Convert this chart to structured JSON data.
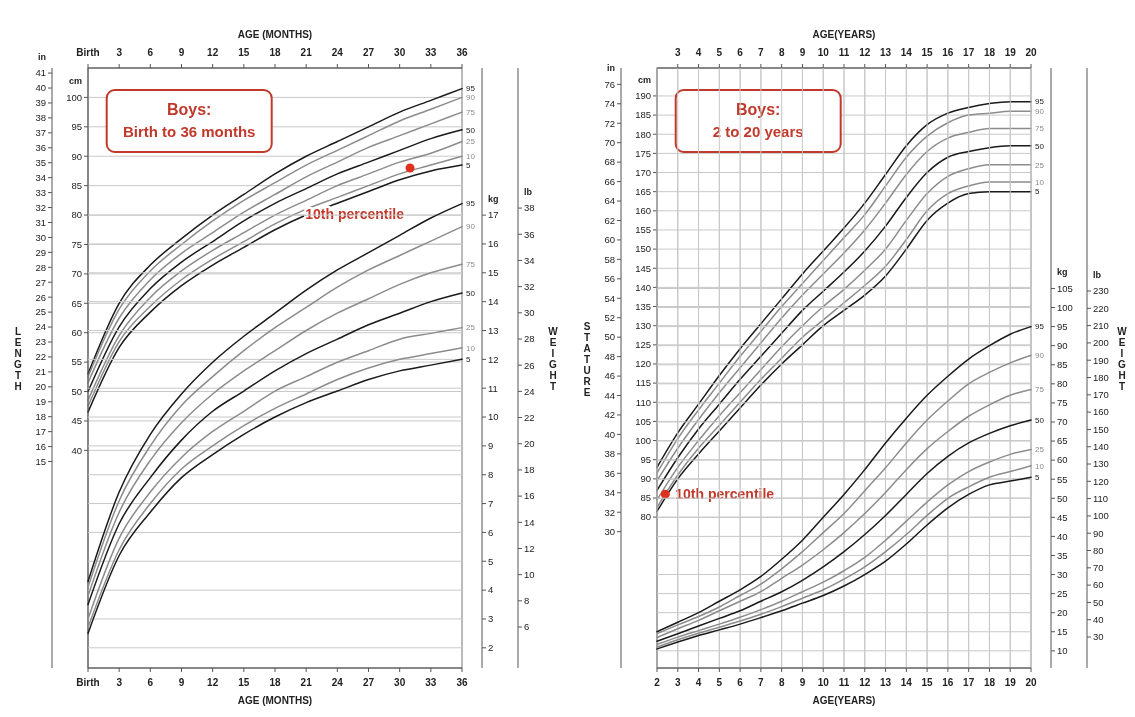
{
  "chart_data": [
    {
      "type": "line",
      "title": "Boys:",
      "subtitle": "Birth to 36 months",
      "xlabel": "AGE (MONTHS)",
      "ylabel": "cm",
      "y3label": "in",
      "annotations": [
        "LENGTH",
        {
          "text": "10th percentile",
          "x": 31,
          "y": 88
        }
      ],
      "x": [
        0,
        3,
        6,
        9,
        12,
        15,
        18,
        21,
        24,
        27,
        30,
        33,
        36
      ],
      "xlim": [
        0,
        36
      ],
      "xticks": [
        {
          "value": 0,
          "label": "Birth"
        },
        3,
        6,
        9,
        12,
        15,
        18,
        21,
        24,
        27,
        30,
        33,
        36
      ],
      "ylim": [
        3,
        105
      ],
      "yticks": [
        40,
        45,
        50,
        55,
        60,
        65,
        70,
        75,
        80,
        85,
        90,
        95,
        100
      ],
      "y3lim": [
        1.18,
        41.34
      ],
      "y3ticks": [
        15,
        16,
        17,
        18,
        19,
        20,
        21,
        22,
        23,
        24,
        25,
        26,
        27,
        28,
        29,
        30,
        31,
        32,
        33,
        34,
        35,
        36,
        37,
        38,
        39,
        40,
        41
      ],
      "grid": "y",
      "series": [
        {
          "name": "95",
          "color": "#1a1a1a",
          "values": [
            53,
            65,
            71.5,
            76,
            80,
            83.5,
            87,
            90,
            92.5,
            95,
            97.5,
            99.5,
            101.5
          ]
        },
        {
          "name": "90",
          "color": "#8c8c8c",
          "values": [
            52.5,
            64,
            70.5,
            75,
            79,
            82.5,
            85.5,
            88.5,
            91,
            93.5,
            96,
            98,
            100
          ]
        },
        {
          "name": "75",
          "color": "#8c8c8c",
          "values": [
            51.5,
            62.5,
            69,
            73.5,
            77,
            80.5,
            83.5,
            86.5,
            89,
            91.5,
            93.5,
            95.5,
            97.5
          ]
        },
        {
          "name": "50",
          "color": "#1a1a1a",
          "values": [
            50,
            61,
            67.5,
            72,
            75.5,
            79,
            82,
            84.5,
            87,
            89,
            91,
            93,
            94.5
          ]
        },
        {
          "name": "25",
          "color": "#8c8c8c",
          "values": [
            48.5,
            59.5,
            66,
            70.5,
            74,
            77,
            80,
            82.5,
            85,
            87,
            89,
            90.5,
            92.5
          ]
        },
        {
          "name": "10",
          "color": "#8c8c8c",
          "values": [
            47.5,
            58.5,
            64.5,
            69,
            72.5,
            75.5,
            78.5,
            81,
            83,
            85,
            87,
            88.5,
            90
          ]
        },
        {
          "name": "5",
          "color": "#1a1a1a",
          "values": [
            46.5,
            57.5,
            63.5,
            68,
            71.5,
            74.5,
            77.5,
            80,
            82,
            84,
            86,
            87.5,
            88.5
          ]
        },
        {
          "type": "scatter",
          "color": "#e0301e",
          "x": [
            31
          ],
          "values": [
            88
          ]
        }
      ]
    },
    {
      "type": "line",
      "xlabel": "AGE (MONTHS)",
      "ylabel": "kg",
      "y3label": "lb",
      "annotations": [
        "WEIGHT"
      ],
      "x": [
        0,
        3,
        6,
        9,
        12,
        15,
        18,
        21,
        24,
        27,
        30,
        33,
        36
      ],
      "xlim": [
        0,
        36
      ],
      "xticks": [
        {
          "value": 0,
          "label": "Birth"
        },
        3,
        6,
        9,
        12,
        15,
        18,
        21,
        24,
        27,
        30,
        33,
        36
      ],
      "ylim": [
        1.3,
        22.1
      ],
      "yticks": [
        2,
        3,
        4,
        5,
        6,
        7,
        8,
        9,
        10,
        11,
        12,
        13,
        14,
        15,
        16,
        17
      ],
      "y3lim": [
        2.87,
        48.7
      ],
      "y3ticks": [
        6,
        8,
        10,
        12,
        14,
        16,
        18,
        20,
        22,
        24,
        26,
        28,
        30,
        32,
        34,
        36,
        38
      ],
      "grid": "y",
      "series": [
        {
          "name": "95",
          "color": "#1a1a1a",
          "values": [
            4.3,
            7.4,
            9.4,
            10.8,
            11.9,
            12.8,
            13.6,
            14.4,
            15.1,
            15.7,
            16.3,
            16.9,
            17.4
          ]
        },
        {
          "name": "90",
          "color": "#8c8c8c",
          "values": [
            4.1,
            7.1,
            9.0,
            10.4,
            11.4,
            12.3,
            13.1,
            13.8,
            14.5,
            15.1,
            15.6,
            16.1,
            16.6
          ]
        },
        {
          "name": "75",
          "color": "#8c8c8c",
          "values": [
            3.8,
            6.7,
            8.5,
            9.8,
            10.8,
            11.6,
            12.3,
            13.0,
            13.6,
            14.1,
            14.6,
            15.0,
            15.3
          ]
        },
        {
          "name": "50",
          "color": "#1a1a1a",
          "values": [
            3.5,
            6.3,
            7.9,
            9.2,
            10.2,
            10.9,
            11.6,
            12.2,
            12.7,
            13.2,
            13.6,
            14.0,
            14.3
          ]
        },
        {
          "name": "25",
          "color": "#8c8c8c",
          "values": [
            3.0,
            5.8,
            7.4,
            8.6,
            9.5,
            10.2,
            10.9,
            11.4,
            11.9,
            12.3,
            12.7,
            12.9,
            13.1
          ]
        },
        {
          "name": "10",
          "color": "#8c8c8c",
          "values": [
            2.7,
            5.4,
            7.0,
            8.2,
            9.0,
            9.7,
            10.3,
            10.8,
            11.3,
            11.7,
            12.0,
            12.2,
            12.4
          ]
        },
        {
          "name": "5",
          "color": "#1a1a1a",
          "values": [
            2.5,
            5.2,
            6.7,
            7.9,
            8.7,
            9.4,
            10.0,
            10.5,
            10.9,
            11.3,
            11.6,
            11.8,
            12.0
          ]
        }
      ]
    },
    {
      "type": "line",
      "title": "Boys:",
      "subtitle": "2 to 20 years",
      "xlabel": "AGE(YEARS)",
      "ylabel": "cm",
      "y3label": "in",
      "annotations": [
        "STATURE",
        {
          "text": "10th percentile",
          "x": 2.4,
          "y": 86
        }
      ],
      "x": [
        2,
        3,
        4,
        5,
        6,
        7,
        8,
        9,
        10,
        11,
        12,
        13,
        14,
        15,
        16,
        17,
        18,
        19,
        20
      ],
      "xlim": [
        2,
        20
      ],
      "xticks": [
        3,
        4,
        5,
        6,
        7,
        8,
        9,
        10,
        11,
        12,
        13,
        14,
        15,
        16,
        17,
        18,
        19,
        20
      ],
      "ylim": [
        40.6,
        197.3
      ],
      "yticks": [
        80,
        85,
        90,
        95,
        100,
        105,
        110,
        115,
        120,
        125,
        130,
        135,
        140,
        145,
        150,
        155,
        160,
        165,
        170,
        175,
        180,
        185,
        190
      ],
      "y3lim": [
        15.98,
        77.68
      ],
      "y3ticks": [
        30,
        32,
        34,
        36,
        38,
        40,
        42,
        44,
        46,
        48,
        50,
        52,
        54,
        56,
        58,
        60,
        62,
        64,
        66,
        68,
        70,
        72,
        74,
        76
      ],
      "grid": true,
      "series": [
        {
          "name": "95",
          "color": "#1a1a1a",
          "values": [
            93,
            102,
            109.5,
            117,
            124,
            130.5,
            137,
            143.5,
            149.5,
            155.5,
            162,
            169.5,
            177,
            182.5,
            185.5,
            187,
            188,
            188.5,
            188.5
          ]
        },
        {
          "name": "90",
          "color": "#8c8c8c",
          "values": [
            91.5,
            100.5,
            108,
            115,
            122,
            128.5,
            135,
            141,
            147,
            153,
            159,
            166.5,
            174,
            179.5,
            183,
            185,
            185.5,
            186,
            186
          ]
        },
        {
          "name": "75",
          "color": "#8c8c8c",
          "values": [
            89.5,
            98,
            105.5,
            112.5,
            119,
            125.5,
            132,
            138,
            143.5,
            149,
            155,
            162,
            169.5,
            175.5,
            179,
            180.5,
            181.5,
            181.5,
            181.5
          ]
        },
        {
          "name": "50",
          "color": "#1a1a1a",
          "values": [
            87,
            95.5,
            103,
            109.5,
            116,
            122,
            128,
            134,
            139,
            144,
            149.5,
            156,
            163.5,
            170,
            174,
            175.5,
            176.5,
            177,
            177
          ]
        },
        {
          "name": "25",
          "color": "#8c8c8c",
          "values": [
            84.5,
            93,
            100,
            106.5,
            112.5,
            118.5,
            124.5,
            130,
            135,
            139.5,
            144.5,
            150,
            157.5,
            164.5,
            169,
            171,
            172,
            172,
            172
          ]
        },
        {
          "name": "10",
          "color": "#8c8c8c",
          "values": [
            82.5,
            91,
            98,
            104,
            110,
            116,
            121.5,
            127,
            131.5,
            136,
            140.5,
            145.5,
            152.5,
            160,
            164.5,
            166.5,
            167.5,
            167.5,
            167.5
          ]
        },
        {
          "name": "5",
          "color": "#1a1a1a",
          "values": [
            81.5,
            90,
            96.5,
            102.5,
            108.5,
            114.5,
            120,
            125,
            130,
            134,
            138,
            143,
            150,
            157.5,
            162,
            164.5,
            165,
            165,
            165
          ]
        },
        {
          "type": "scatter",
          "color": "#e0301e",
          "x": [
            2.4
          ],
          "values": [
            86
          ]
        }
      ]
    },
    {
      "type": "line",
      "xlabel": "AGE(YEARS)",
      "ylabel": "kg",
      "y3label": "lb",
      "annotations": [
        "WEIGHT"
      ],
      "x": [
        2,
        3,
        4,
        5,
        6,
        7,
        8,
        9,
        10,
        11,
        12,
        13,
        14,
        15,
        16,
        17,
        18,
        19,
        20
      ],
      "xlim": [
        2,
        20
      ],
      "xticks": [
        2,
        3,
        4,
        5,
        6,
        7,
        8,
        9,
        10,
        11,
        12,
        13,
        14,
        15,
        16,
        17,
        18,
        19,
        20
      ],
      "ylim": [
        5.5,
        162.8
      ],
      "yticks": [
        10,
        15,
        20,
        25,
        30,
        35,
        40,
        45,
        50,
        55,
        60,
        65,
        70,
        75,
        80,
        85,
        90,
        95,
        100,
        105
      ],
      "y3lim": [
        12.1,
        358.9
      ],
      "y3ticks": [
        30,
        40,
        50,
        60,
        70,
        80,
        90,
        100,
        110,
        120,
        130,
        140,
        150,
        160,
        170,
        180,
        190,
        200,
        210,
        220,
        230
      ],
      "grid": true,
      "series": [
        {
          "name": "95",
          "color": "#1a1a1a",
          "values": [
            15,
            17.5,
            20,
            23,
            26,
            29.5,
            34,
            39,
            45,
            51,
            57.5,
            64.5,
            71,
            77,
            82,
            86.5,
            90,
            93,
            95
          ]
        },
        {
          "name": "90",
          "color": "#8c8c8c",
          "values": [
            14.5,
            16.8,
            19,
            21.5,
            24.5,
            27.5,
            31.5,
            36,
            41,
            46,
            52,
            58,
            64.5,
            70.5,
            75.5,
            80,
            83,
            85.5,
            87.5
          ]
        },
        {
          "name": "75",
          "color": "#8c8c8c",
          "values": [
            13.5,
            15.8,
            18,
            20.5,
            23,
            25.5,
            29,
            32.5,
            36.5,
            41,
            46,
            51.5,
            57.5,
            63,
            67.5,
            71.5,
            74.5,
            77,
            78.5
          ]
        },
        {
          "name": "50",
          "color": "#1a1a1a",
          "values": [
            12.5,
            14.5,
            16.5,
            18.5,
            20.5,
            23,
            25.5,
            28.5,
            32,
            36,
            40.5,
            45.5,
            51,
            56.5,
            61,
            64.5,
            67,
            69,
            70.5
          ]
        },
        {
          "name": "25",
          "color": "#8c8c8c",
          "values": [
            11.7,
            13.6,
            15.3,
            17,
            18.8,
            20.8,
            23,
            25.5,
            28,
            31,
            34.5,
            39,
            44,
            49,
            53.5,
            57,
            59.5,
            61.5,
            62.8
          ]
        },
        {
          "name": "10",
          "color": "#8c8c8c",
          "values": [
            11,
            12.9,
            14.6,
            16.2,
            17.8,
            19.6,
            21.6,
            23.8,
            26,
            28.8,
            32,
            36,
            40.5,
            45.5,
            50,
            53,
            55.5,
            57,
            58.5
          ]
        },
        {
          "name": "5",
          "color": "#1a1a1a",
          "values": [
            10.5,
            12.3,
            14,
            15.5,
            17,
            18.7,
            20.5,
            22.5,
            24.5,
            27,
            30,
            33.5,
            38,
            43,
            47.5,
            51,
            53.5,
            54.5,
            55.5
          ]
        }
      ]
    }
  ]
}
